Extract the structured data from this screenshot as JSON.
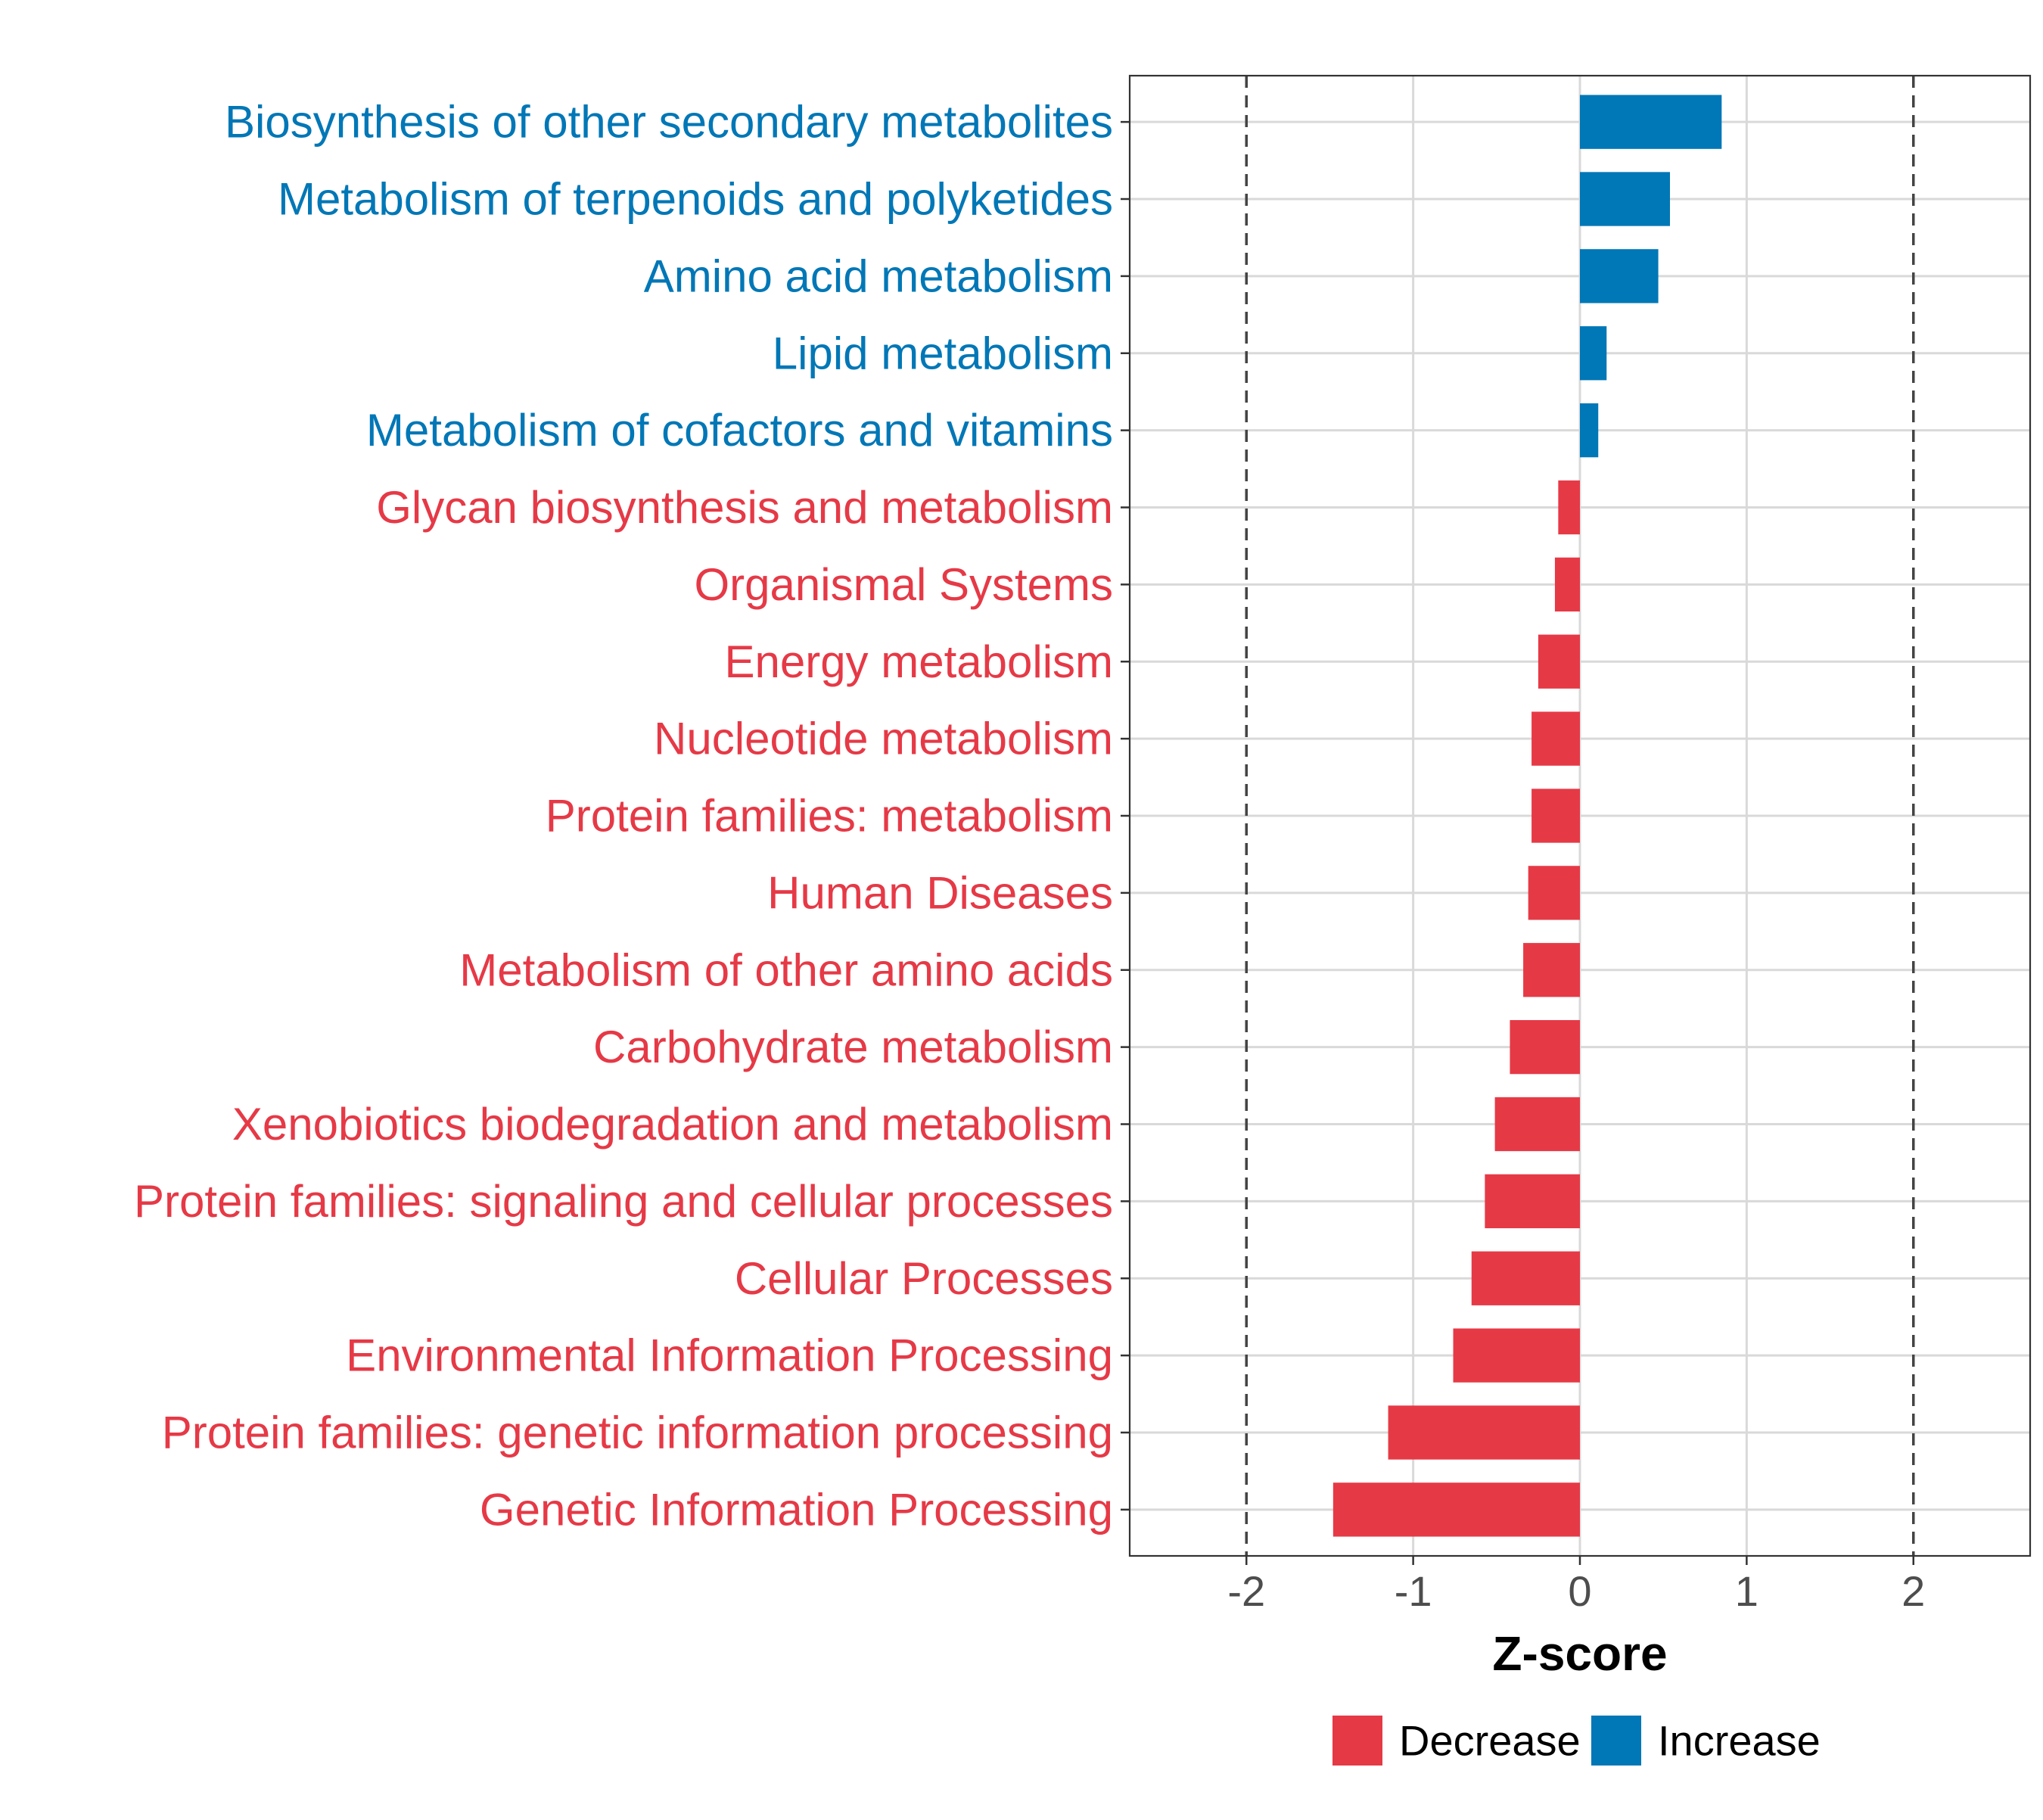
{
  "chart_data": {
    "type": "bar",
    "orientation": "horizontal",
    "xlabel": "Z-score",
    "xlim": [
      -2.7,
      2.7
    ],
    "xticks": [
      "-2",
      "-1",
      "0",
      "1",
      "2"
    ],
    "xtick_values": [
      -2,
      -1,
      0,
      1,
      2
    ],
    "threshold_lines": [
      -2,
      2
    ],
    "grid": true,
    "legend_position": "bottom",
    "legend": [
      {
        "label": "Decrease",
        "color": "#E63946"
      },
      {
        "label": "Increase",
        "color": "#0077B6"
      }
    ],
    "categories": [
      "Biosynthesis of other secondary metabolites",
      "Metabolism of terpenoids and polyketides",
      "Amino acid metabolism",
      "Lipid metabolism",
      "Metabolism of cofactors and vitamins",
      "Glycan biosynthesis and metabolism",
      "Organismal Systems",
      "Energy metabolism",
      "Nucleotide metabolism",
      "Protein families: metabolism",
      "Human Diseases",
      "Metabolism of other amino acids",
      "Carbohydrate metabolism",
      "Xenobiotics biodegradation and metabolism",
      "Protein families: signaling and cellular processes",
      "Cellular Processes",
      "Environmental Information Processing",
      "Protein families: genetic information processing",
      "Genetic Information Processing"
    ],
    "values": [
      0.85,
      0.54,
      0.47,
      0.16,
      0.11,
      -0.13,
      -0.15,
      -0.25,
      -0.29,
      -0.29,
      -0.31,
      -0.34,
      -0.42,
      -0.51,
      -0.57,
      -0.65,
      -0.76,
      -1.15,
      -1.48
    ],
    "groups": [
      "Increase",
      "Increase",
      "Increase",
      "Increase",
      "Increase",
      "Decrease",
      "Decrease",
      "Decrease",
      "Decrease",
      "Decrease",
      "Decrease",
      "Decrease",
      "Decrease",
      "Decrease",
      "Decrease",
      "Decrease",
      "Decrease",
      "Decrease",
      "Decrease"
    ],
    "colors": {
      "Decrease": "#E63946",
      "Increase": "#0077B6"
    }
  }
}
